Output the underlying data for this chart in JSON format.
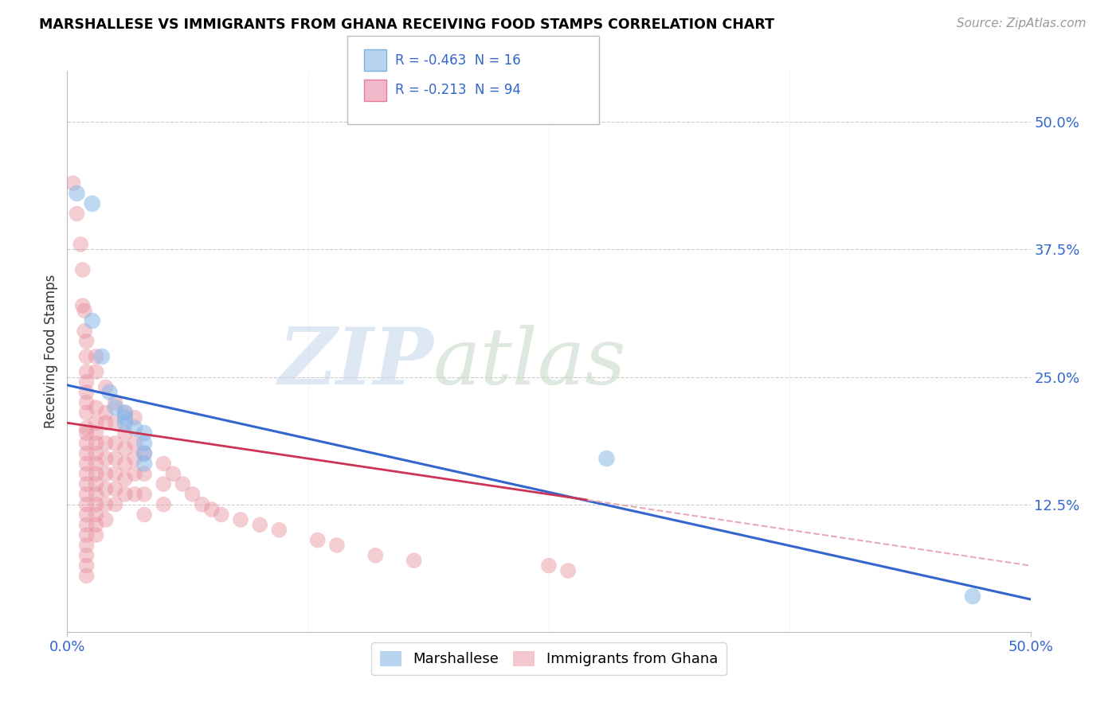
{
  "title": "MARSHALLESE VS IMMIGRANTS FROM GHANA RECEIVING FOOD STAMPS CORRELATION CHART",
  "source": "Source: ZipAtlas.com",
  "ylabel": "Receiving Food Stamps",
  "yticks": [
    "12.5%",
    "25.0%",
    "37.5%",
    "50.0%"
  ],
  "ytick_vals": [
    0.125,
    0.25,
    0.375,
    0.5
  ],
  "blue_color": "#89b8e8",
  "pink_color": "#e8909f",
  "trend_blue": "#3366cc",
  "trend_pink": "#cc3355",
  "trend_pink_dashed": "#e8aab5",
  "legend_blue_label": "R = -0.463  N = 16",
  "legend_pink_label": "R = -0.213  N = 94",
  "legend_blue_fill": "#b8d4f0",
  "legend_pink_fill": "#f0b8c8",
  "marshallese_points": [
    [
      0.005,
      0.43
    ],
    [
      0.013,
      0.42
    ],
    [
      0.013,
      0.305
    ],
    [
      0.018,
      0.27
    ],
    [
      0.022,
      0.235
    ],
    [
      0.025,
      0.22
    ],
    [
      0.03,
      0.215
    ],
    [
      0.03,
      0.21
    ],
    [
      0.03,
      0.205
    ],
    [
      0.035,
      0.2
    ],
    [
      0.04,
      0.195
    ],
    [
      0.04,
      0.185
    ],
    [
      0.04,
      0.175
    ],
    [
      0.04,
      0.165
    ],
    [
      0.28,
      0.17
    ],
    [
      0.47,
      0.035
    ]
  ],
  "ghana_points": [
    [
      0.003,
      0.44
    ],
    [
      0.005,
      0.41
    ],
    [
      0.007,
      0.38
    ],
    [
      0.008,
      0.355
    ],
    [
      0.008,
      0.32
    ],
    [
      0.009,
      0.315
    ],
    [
      0.009,
      0.295
    ],
    [
      0.01,
      0.285
    ],
    [
      0.01,
      0.27
    ],
    [
      0.01,
      0.255
    ],
    [
      0.01,
      0.245
    ],
    [
      0.01,
      0.235
    ],
    [
      0.01,
      0.225
    ],
    [
      0.01,
      0.215
    ],
    [
      0.01,
      0.2
    ],
    [
      0.01,
      0.195
    ],
    [
      0.01,
      0.185
    ],
    [
      0.01,
      0.175
    ],
    [
      0.01,
      0.165
    ],
    [
      0.01,
      0.155
    ],
    [
      0.01,
      0.145
    ],
    [
      0.01,
      0.135
    ],
    [
      0.01,
      0.125
    ],
    [
      0.01,
      0.115
    ],
    [
      0.01,
      0.105
    ],
    [
      0.01,
      0.095
    ],
    [
      0.01,
      0.085
    ],
    [
      0.01,
      0.075
    ],
    [
      0.01,
      0.065
    ],
    [
      0.01,
      0.055
    ],
    [
      0.015,
      0.27
    ],
    [
      0.015,
      0.255
    ],
    [
      0.015,
      0.22
    ],
    [
      0.015,
      0.205
    ],
    [
      0.015,
      0.195
    ],
    [
      0.015,
      0.185
    ],
    [
      0.015,
      0.175
    ],
    [
      0.015,
      0.165
    ],
    [
      0.015,
      0.155
    ],
    [
      0.015,
      0.145
    ],
    [
      0.015,
      0.135
    ],
    [
      0.015,
      0.125
    ],
    [
      0.015,
      0.115
    ],
    [
      0.015,
      0.105
    ],
    [
      0.015,
      0.095
    ],
    [
      0.02,
      0.24
    ],
    [
      0.02,
      0.215
    ],
    [
      0.02,
      0.205
    ],
    [
      0.02,
      0.185
    ],
    [
      0.02,
      0.17
    ],
    [
      0.02,
      0.155
    ],
    [
      0.02,
      0.14
    ],
    [
      0.02,
      0.125
    ],
    [
      0.02,
      0.11
    ],
    [
      0.025,
      0.225
    ],
    [
      0.025,
      0.205
    ],
    [
      0.025,
      0.185
    ],
    [
      0.025,
      0.17
    ],
    [
      0.025,
      0.155
    ],
    [
      0.025,
      0.14
    ],
    [
      0.025,
      0.125
    ],
    [
      0.03,
      0.215
    ],
    [
      0.03,
      0.195
    ],
    [
      0.03,
      0.18
    ],
    [
      0.03,
      0.165
    ],
    [
      0.03,
      0.15
    ],
    [
      0.03,
      0.135
    ],
    [
      0.035,
      0.21
    ],
    [
      0.035,
      0.185
    ],
    [
      0.035,
      0.17
    ],
    [
      0.035,
      0.155
    ],
    [
      0.035,
      0.135
    ],
    [
      0.04,
      0.175
    ],
    [
      0.04,
      0.155
    ],
    [
      0.04,
      0.135
    ],
    [
      0.04,
      0.115
    ],
    [
      0.05,
      0.165
    ],
    [
      0.05,
      0.145
    ],
    [
      0.05,
      0.125
    ],
    [
      0.055,
      0.155
    ],
    [
      0.06,
      0.145
    ],
    [
      0.065,
      0.135
    ],
    [
      0.07,
      0.125
    ],
    [
      0.075,
      0.12
    ],
    [
      0.08,
      0.115
    ],
    [
      0.09,
      0.11
    ],
    [
      0.1,
      0.105
    ],
    [
      0.11,
      0.1
    ],
    [
      0.13,
      0.09
    ],
    [
      0.14,
      0.085
    ],
    [
      0.16,
      0.075
    ],
    [
      0.18,
      0.07
    ],
    [
      0.25,
      0.065
    ],
    [
      0.26,
      0.06
    ]
  ]
}
